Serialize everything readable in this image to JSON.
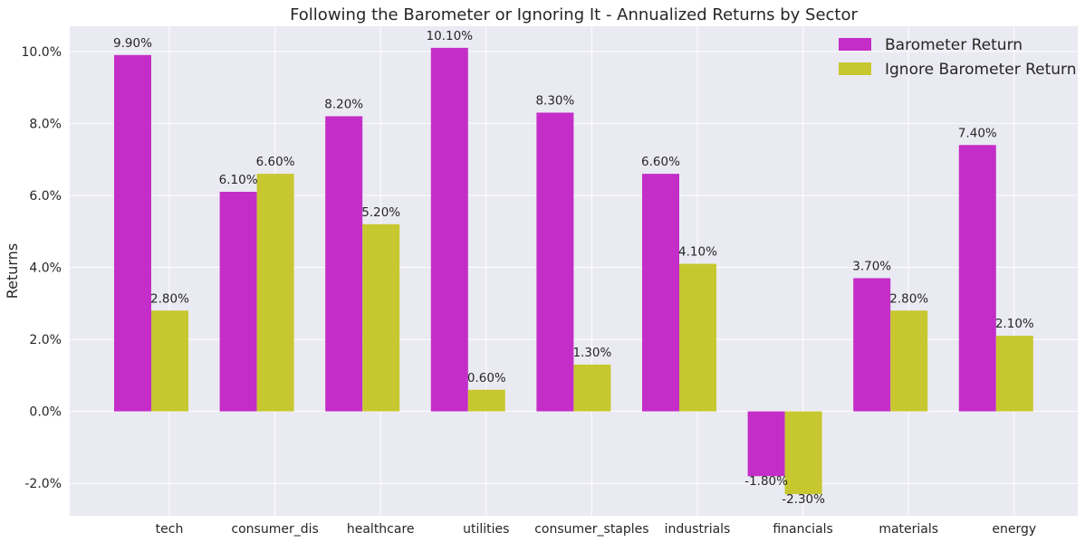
{
  "chart_data": {
    "type": "bar",
    "title": "Following the Barometer or Ignoring It - Annualized Returns by Sector",
    "xlabel": "",
    "ylabel": "Returns",
    "categories": [
      "tech",
      "consumer_dis",
      "healthcare",
      "utilities",
      "consumer_staples",
      "industrials",
      "financials",
      "materials",
      "energy"
    ],
    "series": [
      {
        "name": "Barometer Return",
        "color": "#c42dc8",
        "values": [
          9.9,
          6.1,
          8.2,
          10.1,
          8.3,
          6.6,
          -1.8,
          3.7,
          7.4
        ],
        "labels": [
          "9.90%",
          "6.10%",
          "8.20%",
          "10.10%",
          "8.30%",
          "6.60%",
          "-1.80%",
          "3.70%",
          "7.40%"
        ]
      },
      {
        "name": "Ignore Barometer Return",
        "color": "#c7c730",
        "values": [
          2.8,
          6.6,
          5.2,
          0.6,
          1.3,
          4.1,
          -2.3,
          2.8,
          2.1
        ],
        "labels": [
          "2.80%",
          "6.60%",
          "5.20%",
          "0.60%",
          "1.30%",
          "4.10%",
          "-2.30%",
          "2.80%",
          "2.10%"
        ]
      }
    ],
    "ylim": [
      -2.9,
      10.7
    ],
    "yticks": [
      -2.0,
      0.0,
      2.0,
      4.0,
      6.0,
      8.0,
      10.0
    ],
    "ytick_labels": [
      "-2.0%",
      "0.0%",
      "2.0%",
      "4.0%",
      "6.0%",
      "8.0%",
      "10.0%"
    ],
    "grid": true,
    "legend_position": "top-right",
    "background_color": "#eaeaf2",
    "grid_color": "#ffffff"
  }
}
